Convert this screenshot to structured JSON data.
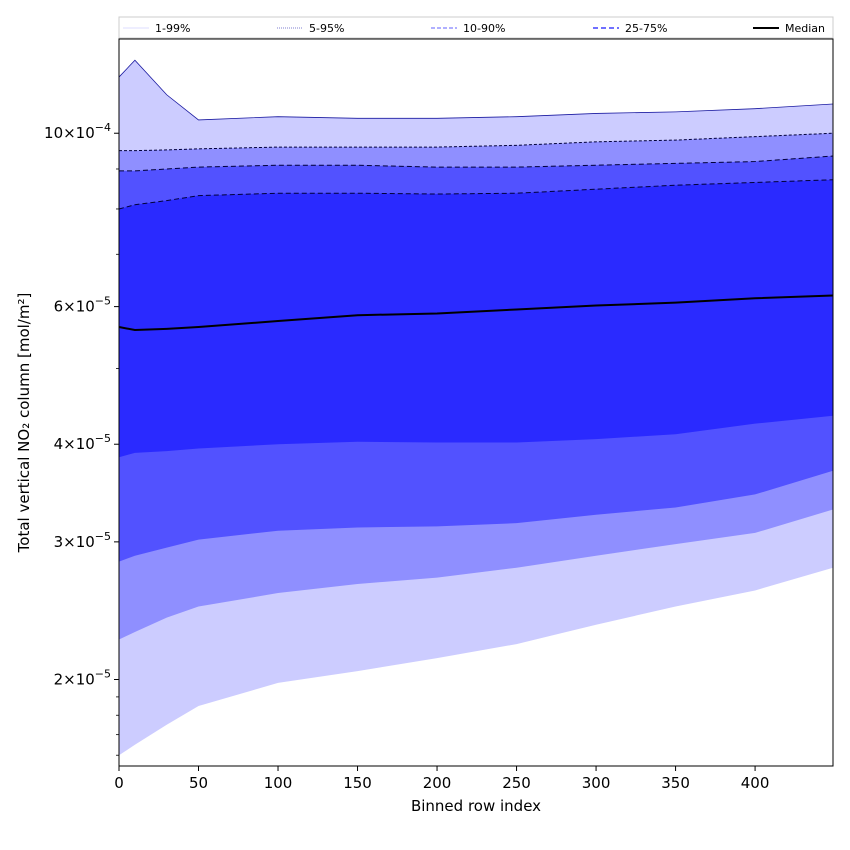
{
  "chart_data": {
    "type": "area",
    "title": "",
    "xlabel": "Binned row index",
    "ylabel": "Total vertical NO₂ column [mol/m²]",
    "yscale": "log",
    "xlim": [
      0,
      449
    ],
    "ylim": [
      1.55e-05,
      0.000132
    ],
    "grid": false,
    "legend_placement": "top",
    "x_ticks": [
      0,
      50,
      100,
      150,
      200,
      250,
      300,
      350,
      400
    ],
    "y_ticks": [
      {
        "value": 2e-05,
        "mant": "2",
        "exp": "−5"
      },
      {
        "value": 3e-05,
        "mant": "3",
        "exp": "−5"
      },
      {
        "value": 4e-05,
        "mant": "4",
        "exp": "−5"
      },
      {
        "value": 6e-05,
        "mant": "6",
        "exp": "−5"
      },
      {
        "value": 0.0001,
        "mant": "10",
        "exp": "−4"
      }
    ],
    "x": [
      0,
      10,
      30,
      50,
      100,
      150,
      200,
      250,
      300,
      350,
      400,
      449
    ],
    "series": [
      {
        "name": "1-99%",
        "lower": [
          1.6e-05,
          1.65e-05,
          1.75e-05,
          1.85e-05,
          1.98e-05,
          2.05e-05,
          2.13e-05,
          2.22e-05,
          2.35e-05,
          2.48e-05,
          2.6e-05,
          2.78e-05
        ],
        "upper": [
          0.000118,
          0.000124,
          0.000112,
          0.000104,
          0.000105,
          0.0001045,
          0.0001045,
          0.000105,
          0.000106,
          0.0001065,
          0.0001075,
          0.000109
        ]
      },
      {
        "name": "5-95%",
        "lower": [
          2.25e-05,
          2.3e-05,
          2.4e-05,
          2.48e-05,
          2.58e-05,
          2.65e-05,
          2.7e-05,
          2.78e-05,
          2.88e-05,
          2.98e-05,
          3.08e-05,
          3.3e-05
        ],
        "upper": [
          9.5e-05,
          9.5e-05,
          9.52e-05,
          9.55e-05,
          9.6e-05,
          9.6e-05,
          9.6e-05,
          9.65e-05,
          9.75e-05,
          9.8e-05,
          9.9e-05,
          0.0001
        ]
      },
      {
        "name": "10-90%",
        "lower": [
          2.83e-05,
          2.88e-05,
          2.95e-05,
          3.02e-05,
          3.1e-05,
          3.13e-05,
          3.14e-05,
          3.17e-05,
          3.25e-05,
          3.32e-05,
          3.45e-05,
          3.7e-05
        ],
        "upper": [
          8.95e-05,
          8.95e-05,
          9e-05,
          9.05e-05,
          9.1e-05,
          9.1e-05,
          9.05e-05,
          9.05e-05,
          9.1e-05,
          9.15e-05,
          9.2e-05,
          9.35e-05
        ]
      },
      {
        "name": "25-75%",
        "lower": [
          3.85e-05,
          3.9e-05,
          3.92e-05,
          3.95e-05,
          4e-05,
          4.03e-05,
          4.02e-05,
          4.02e-05,
          4.06e-05,
          4.12e-05,
          4.25e-05,
          4.35e-05
        ],
        "upper": [
          8e-05,
          8.1e-05,
          8.2e-05,
          8.32e-05,
          8.38e-05,
          8.38e-05,
          8.36e-05,
          8.38e-05,
          8.48e-05,
          8.58e-05,
          8.65e-05,
          8.72e-05
        ]
      },
      {
        "name": "Median",
        "values": [
          5.65e-05,
          5.6e-05,
          5.62e-05,
          5.65e-05,
          5.75e-05,
          5.85e-05,
          5.88e-05,
          5.95e-05,
          6.02e-05,
          6.07e-05,
          6.15e-05,
          6.2e-05
        ]
      }
    ],
    "colors": {
      "band_1_99": "#ccccff",
      "band_5_95": "#8f8fff",
      "band_10_90": "#5252ff",
      "band_25_75": "#2a2aff",
      "edge": "#00003a",
      "median": "#000000"
    }
  }
}
